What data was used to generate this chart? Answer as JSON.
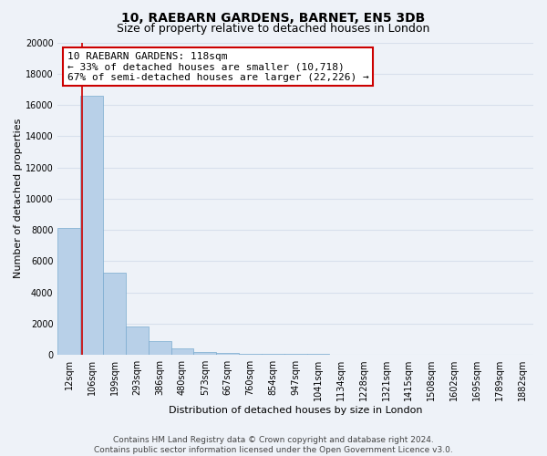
{
  "title": "10, RAEBARN GARDENS, BARNET, EN5 3DB",
  "subtitle": "Size of property relative to detached houses in London",
  "xlabel": "Distribution of detached houses by size in London",
  "ylabel": "Number of detached properties",
  "bar_labels": [
    "12sqm",
    "106sqm",
    "199sqm",
    "293sqm",
    "386sqm",
    "480sqm",
    "573sqm",
    "667sqm",
    "760sqm",
    "854sqm",
    "947sqm",
    "1041sqm",
    "1134sqm",
    "1228sqm",
    "1321sqm",
    "1415sqm",
    "1508sqm",
    "1602sqm",
    "1695sqm",
    "1789sqm",
    "1882sqm"
  ],
  "bar_heights": [
    8100,
    16600,
    5250,
    1800,
    900,
    420,
    200,
    140,
    80,
    60,
    50,
    40,
    30,
    25,
    20,
    15,
    12,
    10,
    8,
    7,
    6
  ],
  "bar_color": "#b8d0e8",
  "bar_edge_color": "#7aabcf",
  "vline_color": "#cc0000",
  "vline_x": 0.575,
  "ylim": [
    0,
    20000
  ],
  "yticks": [
    0,
    2000,
    4000,
    6000,
    8000,
    10000,
    12000,
    14000,
    16000,
    18000,
    20000
  ],
  "annotation_title": "10 RAEBARN GARDENS: 118sqm",
  "annotation_line1": "← 33% of detached houses are smaller (10,718)",
  "annotation_line2": "67% of semi-detached houses are larger (22,226) →",
  "annotation_box_facecolor": "#ffffff",
  "annotation_box_edgecolor": "#cc0000",
  "footer_line1": "Contains HM Land Registry data © Crown copyright and database right 2024.",
  "footer_line2": "Contains public sector information licensed under the Open Government Licence v3.0.",
  "bg_color": "#eef2f8",
  "grid_color": "#d8e0ec",
  "title_fontsize": 10,
  "subtitle_fontsize": 9,
  "axis_label_fontsize": 8,
  "tick_fontsize": 7,
  "annotation_fontsize": 8,
  "footer_fontsize": 6.5
}
